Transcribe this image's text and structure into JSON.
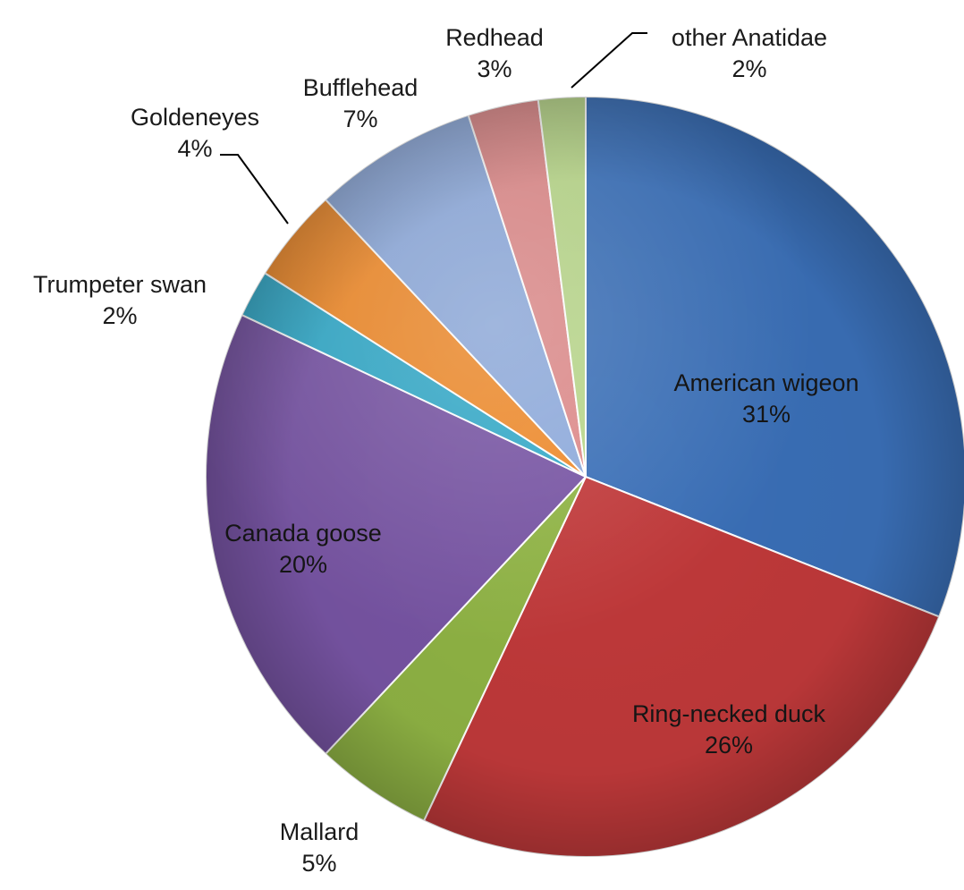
{
  "chart_data": {
    "type": "pie",
    "start_angle_deg": 0,
    "direction": "clockwise",
    "style": "3d-shaded",
    "slices": [
      {
        "name": "American wigeon",
        "value": 31,
        "label": "31%",
        "color": "#3a6fb7",
        "label_position": "inside"
      },
      {
        "name": "Ring-necked duck",
        "value": 26,
        "label": "26%",
        "color": "#c0393a",
        "label_position": "inside"
      },
      {
        "name": "Mallard",
        "value": 5,
        "label": "5%",
        "color": "#8fb344",
        "label_position": "outside"
      },
      {
        "name": "Canada goose",
        "value": 20,
        "label": "20%",
        "color": "#7754a3",
        "label_position": "inside"
      },
      {
        "name": "Trumpeter swan",
        "value": 2,
        "label": "2%",
        "color": "#33a9c8",
        "label_position": "outside"
      },
      {
        "name": "Goldeneyes",
        "value": 4,
        "label": "4%",
        "color": "#ee8a2b",
        "label_position": "outside",
        "leader": true
      },
      {
        "name": "Bufflehead",
        "value": 7,
        "label": "7%",
        "color": "#8eaadb",
        "label_position": "outside"
      },
      {
        "name": "Redhead",
        "value": 3,
        "label": "3%",
        "color": "#dd8a8a",
        "label_position": "outside"
      },
      {
        "name": "other Anatidae",
        "value": 2,
        "label": "2%",
        "color": "#b8d68a",
        "label_position": "outside",
        "leader": true
      }
    ]
  }
}
